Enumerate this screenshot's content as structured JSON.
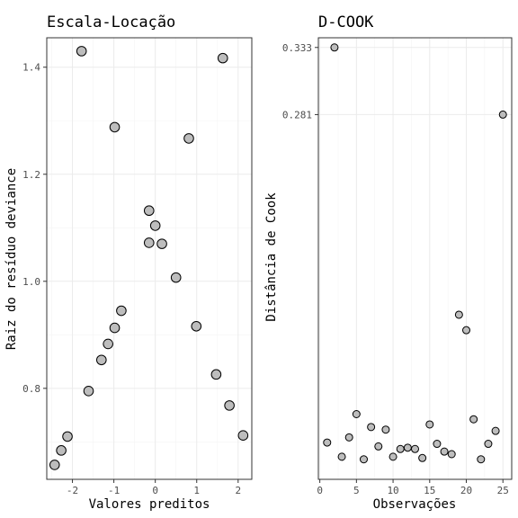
{
  "chart_data": [
    {
      "type": "scatter",
      "title": "Escala-Locação",
      "xlabel": "Valores preditos",
      "ylabel": "Raiz do resíduo deviance",
      "xlim": [
        -2.62,
        2.33
      ],
      "ylim": [
        0.63,
        1.455
      ],
      "xticks": [
        -2,
        -1,
        0,
        1,
        2
      ],
      "yticks": [
        0.8,
        1.0,
        1.2,
        1.4
      ],
      "ytick_labels": [
        "0.8",
        "1.0",
        "1.2",
        "1.4"
      ],
      "grid": true,
      "point_fill": "#bdbdbd",
      "point_stroke": "#000000",
      "points": [
        {
          "x": -1.78,
          "y": 1.43
        },
        {
          "x": 1.63,
          "y": 1.417
        },
        {
          "x": -0.98,
          "y": 1.288
        },
        {
          "x": 0.81,
          "y": 1.267
        },
        {
          "x": -0.15,
          "y": 1.132
        },
        {
          "x": 0.0,
          "y": 1.104
        },
        {
          "x": -0.15,
          "y": 1.072
        },
        {
          "x": 0.16,
          "y": 1.07
        },
        {
          "x": 0.5,
          "y": 1.007
        },
        {
          "x": -0.82,
          "y": 0.945
        },
        {
          "x": -0.98,
          "y": 0.913
        },
        {
          "x": 0.99,
          "y": 0.916
        },
        {
          "x": -1.14,
          "y": 0.883
        },
        {
          "x": -1.3,
          "y": 0.853
        },
        {
          "x": 1.47,
          "y": 0.826
        },
        {
          "x": -1.61,
          "y": 0.795
        },
        {
          "x": 1.79,
          "y": 0.768
        },
        {
          "x": 2.12,
          "y": 0.712
        },
        {
          "x": -2.12,
          "y": 0.71
        },
        {
          "x": -2.27,
          "y": 0.684
        },
        {
          "x": -2.43,
          "y": 0.657
        }
      ]
    },
    {
      "type": "scatter",
      "title": "D-COOK",
      "xlabel": "Observações",
      "ylabel": "Distância de Cook",
      "xlim": [
        -0.2,
        26.2
      ],
      "ylim": [
        -0.0015,
        0.3405
      ],
      "xticks": [
        0,
        5,
        10,
        15,
        20,
        25
      ],
      "yticks": [
        0.281,
        0.333
      ],
      "ytick_labels": [
        "0.281",
        "0.333"
      ],
      "grid": true,
      "point_fill": "#bdbdbd",
      "point_stroke": "#000000",
      "points": [
        {
          "x": 1,
          "y": 0.027
        },
        {
          "x": 2,
          "y": 0.333
        },
        {
          "x": 3,
          "y": 0.016
        },
        {
          "x": 4,
          "y": 0.031
        },
        {
          "x": 5,
          "y": 0.049
        },
        {
          "x": 6,
          "y": 0.014
        },
        {
          "x": 7,
          "y": 0.039
        },
        {
          "x": 8,
          "y": 0.024
        },
        {
          "x": 9,
          "y": 0.037
        },
        {
          "x": 10,
          "y": 0.016
        },
        {
          "x": 11,
          "y": 0.022
        },
        {
          "x": 12,
          "y": 0.023
        },
        {
          "x": 13,
          "y": 0.022
        },
        {
          "x": 14,
          "y": 0.015
        },
        {
          "x": 15,
          "y": 0.041
        },
        {
          "x": 16,
          "y": 0.026
        },
        {
          "x": 17,
          "y": 0.02
        },
        {
          "x": 18,
          "y": 0.018
        },
        {
          "x": 19,
          "y": 0.126
        },
        {
          "x": 20,
          "y": 0.114
        },
        {
          "x": 21,
          "y": 0.045
        },
        {
          "x": 22,
          "y": 0.014
        },
        {
          "x": 23,
          "y": 0.026
        },
        {
          "x": 24,
          "y": 0.036
        },
        {
          "x": 25,
          "y": 0.281
        }
      ]
    }
  ]
}
